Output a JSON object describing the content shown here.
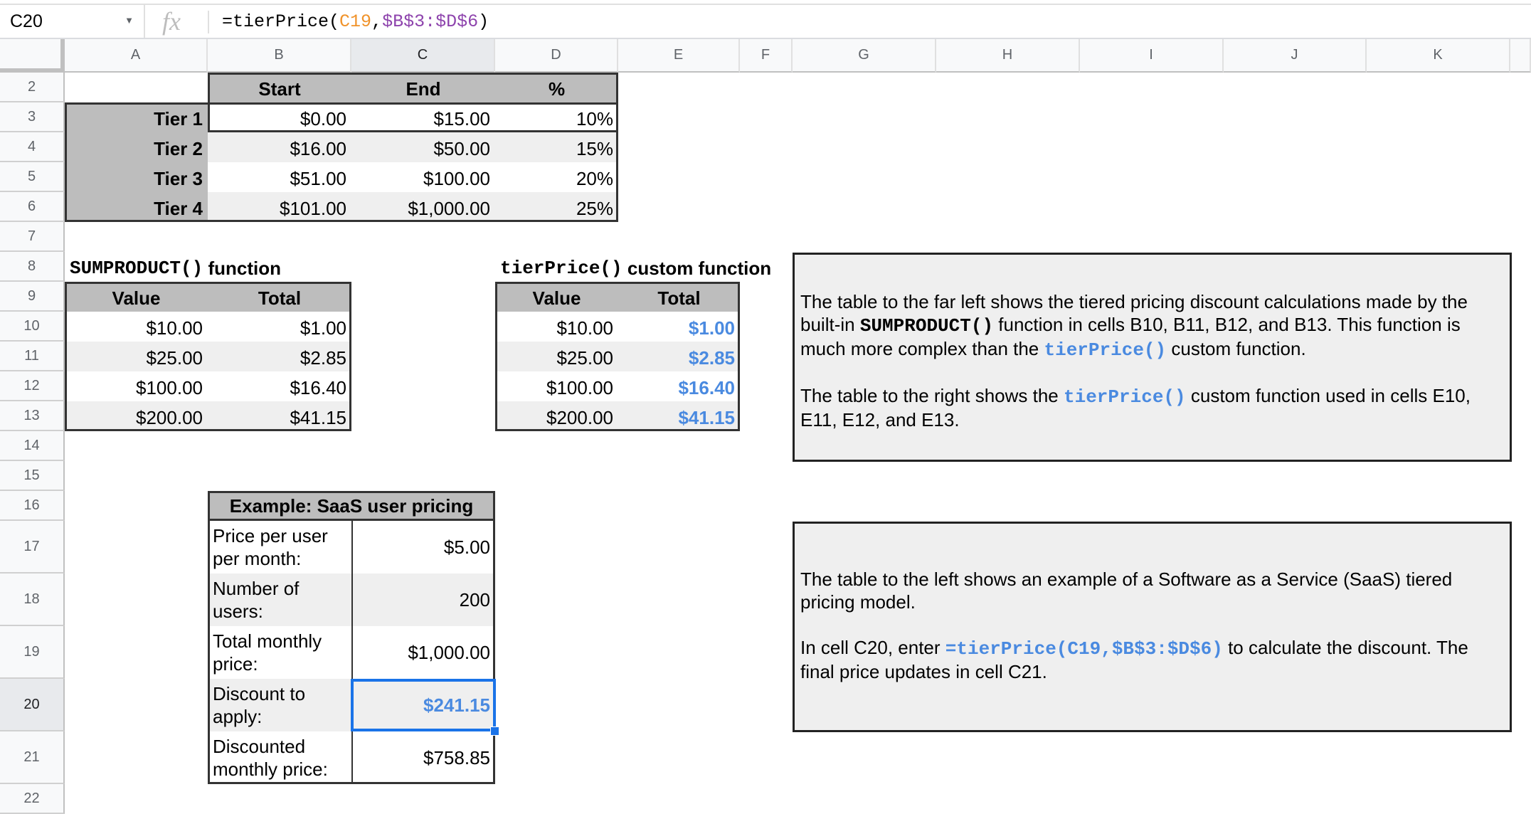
{
  "name_box": {
    "value": "C20",
    "dropdown_icon": "caret-down"
  },
  "formula_bar": {
    "fx_label": "fx",
    "prefix": "=tierPrice(",
    "ref1": "C19",
    "sep": ",",
    "ref2": "$B$3:$D$6",
    "suffix": ")"
  },
  "columns": [
    "A",
    "B",
    "C",
    "D",
    "E",
    "F",
    "G",
    "H",
    "I",
    "J",
    "K"
  ],
  "rows": [
    "2",
    "3",
    "4",
    "5",
    "6",
    "7",
    "8",
    "9",
    "10",
    "11",
    "12",
    "13",
    "14",
    "15",
    "16",
    "17",
    "18",
    "19",
    "20",
    "21",
    "22"
  ],
  "selected": {
    "column": "C",
    "row": "20"
  },
  "tier_table": {
    "headers": [
      "Start",
      "End",
      "%"
    ],
    "rows": [
      {
        "label": "Tier 1",
        "start": "$0.00",
        "end": "$15.00",
        "pct": "10%"
      },
      {
        "label": "Tier 2",
        "start": "$16.00",
        "end": "$50.00",
        "pct": "15%"
      },
      {
        "label": "Tier 3",
        "start": "$51.00",
        "end": "$100.00",
        "pct": "20%"
      },
      {
        "label": "Tier 4",
        "start": "$101.00",
        "end": "$1,000.00",
        "pct": "25%"
      }
    ]
  },
  "sumproduct_table": {
    "title_code": "SUMPRODUCT()",
    "title_text": "function",
    "headers": [
      "Value",
      "Total"
    ],
    "rows": [
      [
        "$10.00",
        "$1.00"
      ],
      [
        "$25.00",
        "$2.85"
      ],
      [
        "$100.00",
        "$16.40"
      ],
      [
        "$200.00",
        "$41.15"
      ]
    ]
  },
  "tierprice_table": {
    "title_code": "tierPrice()",
    "title_text": "custom function",
    "headers": [
      "Value",
      "Total"
    ],
    "rows": [
      [
        "$10.00",
        "$1.00"
      ],
      [
        "$25.00",
        "$2.85"
      ],
      [
        "$100.00",
        "$16.40"
      ],
      [
        "$200.00",
        "$41.15"
      ]
    ]
  },
  "saas_table": {
    "title": "Example: SaaS user pricing",
    "rows": [
      {
        "label": "Price per user per month:",
        "value": "$5.00"
      },
      {
        "label": "Number of users:",
        "value": "200"
      },
      {
        "label": "Total monthly price:",
        "value": "$1,000.00"
      },
      {
        "label": "Discount to apply:",
        "value": "$241.15"
      },
      {
        "label": "Discounted monthly price:",
        "value": "$758.85"
      }
    ]
  },
  "note_1": {
    "p1_a": "The table to the far left shows the tiered pricing discount calculations made by the built-in ",
    "p1_code": "SUMPRODUCT()",
    "p1_b": " function in cells B10, B11, B12, and B13. This function is much more complex than the ",
    "p1_code2": "tierPrice()",
    "p1_c": " custom function.",
    "p2_a": "The table to the right shows the ",
    "p2_code": "tierPrice()",
    "p2_b": " custom function used in cells E10, E11, E12, and E13."
  },
  "note_2": {
    "p1": "The table to the left shows an example of a Software as a Service (SaaS) tiered pricing model.",
    "p2_a": "In cell C20, enter ",
    "p2_code": "=tierPrice(C19,$B$3:$D$6)",
    "p2_b": " to calculate the discount. The final price updates in cell C21."
  },
  "colors": {
    "header_gray": "#bdbdbd",
    "band_gray": "#efefef",
    "custom_fn_blue": "#4a8ae0",
    "selection_blue": "#1a73e8",
    "ref_orange": "#f0932b",
    "ref_purple": "#8e44ad"
  }
}
